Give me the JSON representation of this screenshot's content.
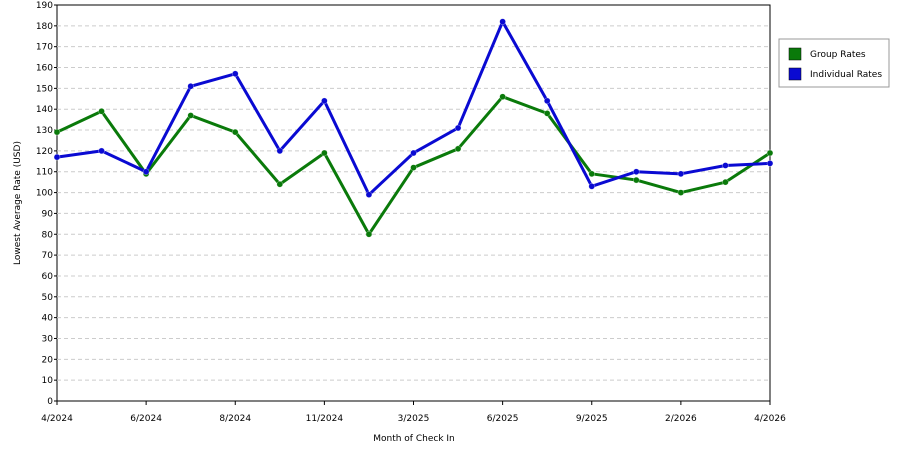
{
  "chart_data": {
    "type": "line",
    "x_label": "Month of Check In",
    "y_label": "Lowest Average Rate (USD)",
    "categories": [
      "4/2024",
      null,
      "6/2024",
      null,
      "8/2024",
      null,
      "11/2024",
      null,
      "3/2025",
      null,
      "6/2025",
      null,
      "9/2025",
      null,
      "2/2026",
      null,
      "4/2026"
    ],
    "series": [
      {
        "name": "Group Rates",
        "color": "#0a7a0a",
        "values": [
          129,
          139,
          109,
          137,
          129,
          104,
          119,
          80,
          112,
          121,
          146,
          138,
          109,
          106,
          100,
          105,
          119
        ]
      },
      {
        "name": "Individual Rates",
        "color": "#0a0ad2",
        "values": [
          117,
          120,
          110,
          151,
          157,
          120,
          144,
          99,
          119,
          131,
          182,
          144,
          103,
          110,
          109,
          113,
          114
        ]
      }
    ],
    "ylim": [
      0,
      190
    ],
    "yticks": [
      0,
      10,
      20,
      30,
      40,
      50,
      60,
      70,
      80,
      90,
      100,
      110,
      120,
      130,
      140,
      150,
      160,
      170,
      180,
      190
    ],
    "grid": true,
    "legend": "right"
  }
}
